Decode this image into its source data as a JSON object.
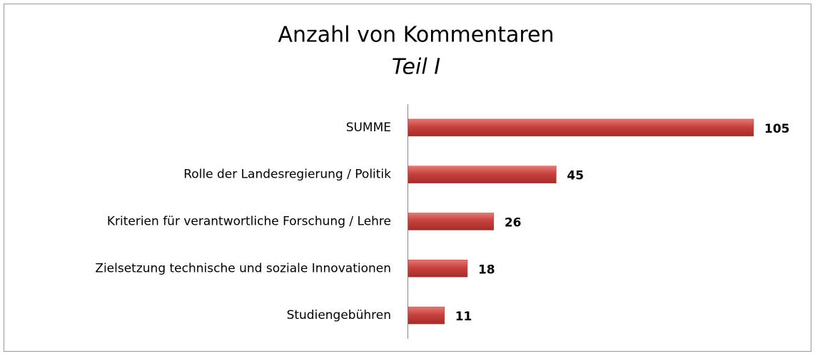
{
  "chart_data": {
    "type": "bar",
    "orientation": "horizontal",
    "title": "Anzahl von Kommentaren",
    "subtitle": "Teil I",
    "categories": [
      "SUMME",
      "Rolle der Landesregierung / Politik",
      "Kriterien für verantwortliche Forschung / Lehre",
      "Zielsetzung technische und soziale Innovationen",
      "Studiengebühren"
    ],
    "values": [
      105,
      45,
      26,
      18,
      11
    ],
    "color": "#c0403d"
  }
}
